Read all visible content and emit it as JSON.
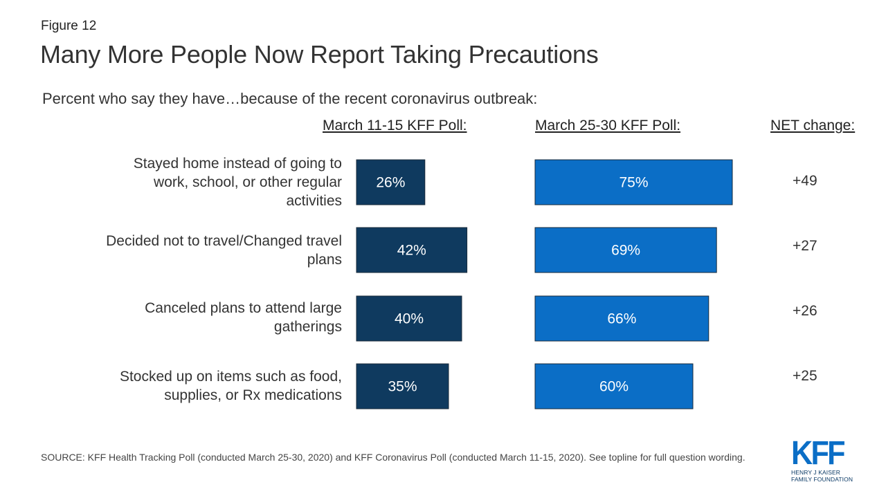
{
  "figure_label": "Figure 12",
  "title": "Many More People Now Report Taking Precautions",
  "subtitle": "Percent who say they have…because of the recent coronavirus outbreak:",
  "column_headers": {
    "march_11_15": "March 11-15 KFF Poll:",
    "march_25_30": "March 25-30 KFF Poll:",
    "net_change": "NET change:"
  },
  "chart_data": {
    "type": "bar",
    "orientation": "horizontal",
    "categories": [
      "Stayed home instead of going to work, school, or other regular activities",
      "Decided not to travel/Changed travel plans",
      "Canceled plans to attend large gatherings",
      "Stocked up on items such as food, supplies, or Rx medications"
    ],
    "series": [
      {
        "name": "March 11-15 KFF Poll:",
        "values": [
          26,
          42,
          40,
          35
        ],
        "labels": [
          "26%",
          "42%",
          "40%",
          "35%"
        ],
        "color": "#0f3a5f"
      },
      {
        "name": "March 25-30 KFF Poll:",
        "values": [
          75,
          69,
          66,
          60
        ],
        "labels": [
          "75%",
          "69%",
          "66%",
          "60%"
        ],
        "color": "#0b6ec6"
      }
    ],
    "net_change": [
      "+49",
      "+27",
      "+26",
      "+25"
    ],
    "xlim": [
      0,
      100
    ],
    "grid": false
  },
  "row_labels": [
    [
      "Stayed home instead of going to",
      "work, school, or other regular",
      "activities"
    ],
    [
      "Decided not to travel/Changed travel",
      "plans"
    ],
    [
      "Canceled plans to attend large",
      "gatherings"
    ],
    [
      "Stocked up on items such as food,",
      "supplies, or Rx medications"
    ]
  ],
  "source": "SOURCE: KFF Health Tracking Poll (conducted March 25-30, 2020) and KFF Coronavirus Poll (conducted March 11-15, 2020). See topline for full question wording.",
  "logo": {
    "mark": "KFF",
    "line1": "HENRY J KAISER",
    "line2": "FAMILY FOUNDATION"
  }
}
